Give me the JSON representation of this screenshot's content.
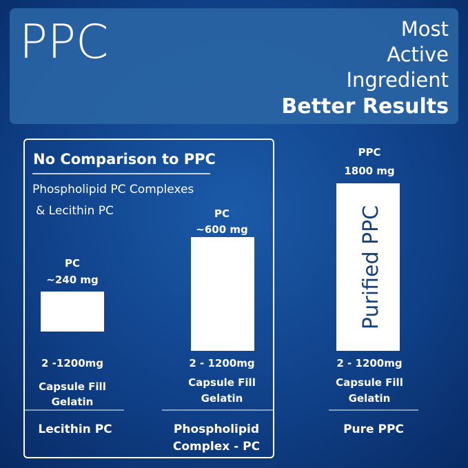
{
  "header": {
    "title": "PPC",
    "tagline": [
      "Most",
      "Active",
      "Ingredient"
    ],
    "emphasis": "Better Results"
  },
  "comparison": {
    "heading": "No Comparison to PPC",
    "subheading": [
      "Phospholipid PC Complexes",
      "& Lecithin PC"
    ]
  },
  "columns": [
    {
      "amount": [
        "PC",
        "~240 mg"
      ],
      "dose": "2 -1200mg",
      "form": [
        "Capsule Fill",
        "Gelatin"
      ],
      "name": [
        "Lecithin PC"
      ]
    },
    {
      "amount": [
        "PC",
        "~600 mg"
      ],
      "dose": "2 - 1200mg",
      "form": [
        "Capsule Fill",
        "Gelatin"
      ],
      "name": [
        "Phospholipid",
        "Complex - PC"
      ]
    },
    {
      "amount": [
        "PPC",
        "1800 mg"
      ],
      "bar_label": "Purified PPC",
      "dose": "2 - 1200mg",
      "form": [
        "Capsule Fill",
        "Gelatin"
      ],
      "name": [
        "Pure PPC"
      ]
    }
  ]
}
